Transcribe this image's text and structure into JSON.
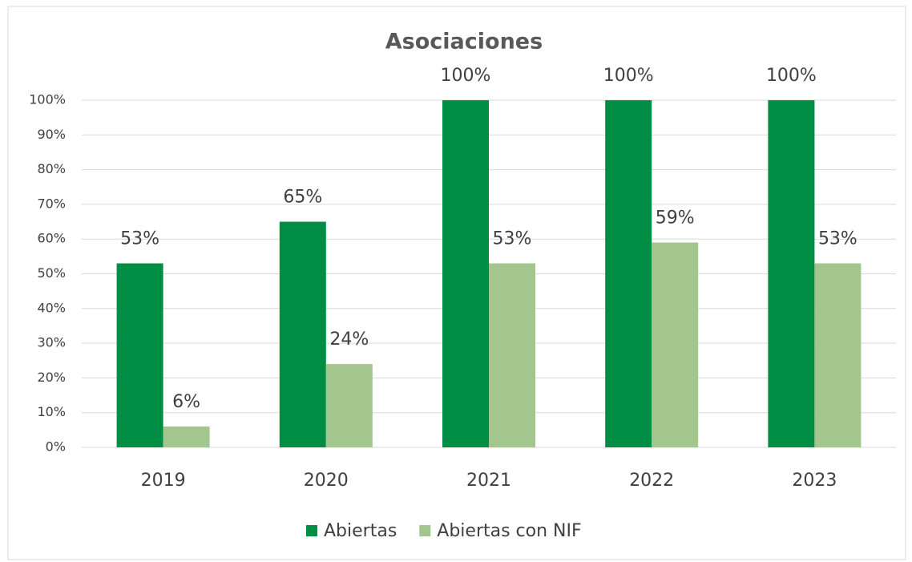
{
  "chart_data": {
    "type": "bar",
    "title": "Asociaciones",
    "categories": [
      "2019",
      "2020",
      "2021",
      "2022",
      "2023"
    ],
    "series": [
      {
        "name": "Abiertas",
        "color": "#008e44",
        "values": [
          53,
          65,
          100,
          100,
          100
        ],
        "value_labels": [
          "53%",
          "65%",
          "100%",
          "100%",
          "100%"
        ]
      },
      {
        "name": "Abiertas con NIF",
        "color": "#a3c68f",
        "values": [
          6,
          24,
          53,
          59,
          53
        ],
        "value_labels": [
          "6%",
          "24%",
          "53%",
          "59%",
          "53%"
        ]
      }
    ],
    "ylim": [
      0,
      100
    ],
    "yticks": [
      {
        "value": 0,
        "label": "0%"
      },
      {
        "value": 10,
        "label": "10%"
      },
      {
        "value": 20,
        "label": "20%"
      },
      {
        "value": 30,
        "label": "30%"
      },
      {
        "value": 40,
        "label": "40%"
      },
      {
        "value": 50,
        "label": "50%"
      },
      {
        "value": 60,
        "label": "60%"
      },
      {
        "value": 70,
        "label": "70%"
      },
      {
        "value": 80,
        "label": "80%"
      },
      {
        "value": 90,
        "label": "90%"
      },
      {
        "value": 100,
        "label": "100%"
      }
    ],
    "grid": true,
    "legend": "bottom"
  }
}
